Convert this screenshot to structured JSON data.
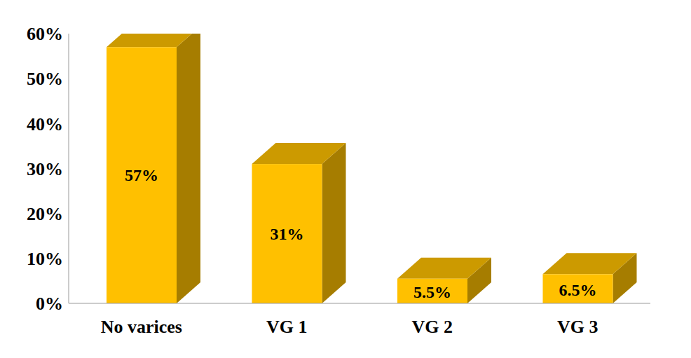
{
  "chart_data": {
    "type": "bar",
    "categories": [
      "No varices",
      "VG 1",
      "VG 2",
      "VG 3"
    ],
    "values": [
      57,
      31,
      5.5,
      6.5
    ],
    "value_labels": [
      "57%",
      "31%",
      "5.5%",
      "6.5%"
    ],
    "data_labels": true,
    "color": "#ffc000",
    "ylim": [
      0,
      60
    ],
    "yticks": [
      {
        "value": 0,
        "label": "0%"
      },
      {
        "value": 10,
        "label": "10%"
      },
      {
        "value": 20,
        "label": "20%"
      },
      {
        "value": 30,
        "label": "30%"
      },
      {
        "value": 40,
        "label": "40%"
      },
      {
        "value": 50,
        "label": "50%"
      },
      {
        "value": 60,
        "label": "60%"
      }
    ],
    "grid": false
  }
}
